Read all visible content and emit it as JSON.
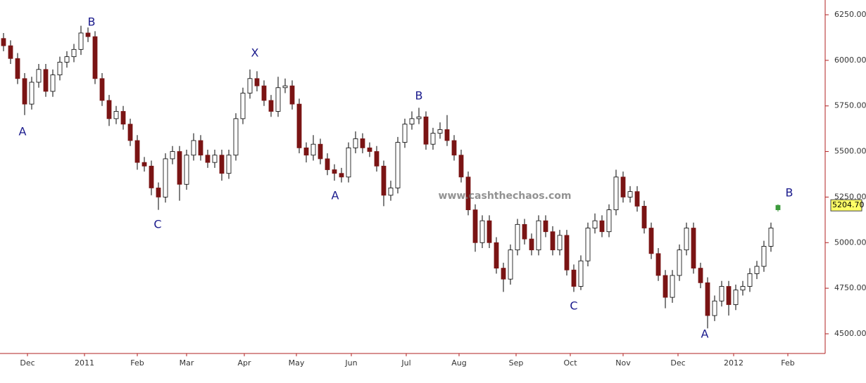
{
  "chart_data": {
    "type": "candlestick",
    "open": [
      6120,
      6080,
      6010,
      5900,
      5760,
      5880,
      5950,
      5830,
      5920,
      5990,
      6020,
      6060,
      6150,
      6130,
      5900,
      5780,
      5680,
      5720,
      5650,
      5560,
      5440,
      5420,
      5300,
      5250,
      5460,
      5500,
      5320,
      5480,
      5560,
      5480,
      5440,
      5480,
      5380,
      5480,
      5680,
      5820,
      5900,
      5860,
      5780,
      5720,
      5850,
      5860,
      5760,
      5520,
      5480,
      5540,
      5460,
      5400,
      5380,
      5360,
      5520,
      5570,
      5520,
      5500,
      5420,
      5260,
      5300,
      5550,
      5650,
      5680,
      5690,
      5540,
      5600,
      5620,
      5560,
      5480,
      5360,
      5180,
      5000,
      5120,
      5000,
      4860,
      4800,
      4960,
      5100,
      5020,
      4960,
      5120,
      5060,
      4960,
      5040,
      4850,
      4760,
      4900,
      5080,
      5120,
      5060,
      5180,
      5360,
      5250,
      5280,
      5200,
      5080,
      4940,
      4820,
      4700,
      4820,
      4960,
      5080,
      4860,
      4780,
      4600,
      4680,
      4760,
      4660,
      4740,
      4760,
      4830,
      4870,
      4980,
      5180
    ],
    "high": [
      6150,
      6110,
      6040,
      5930,
      5910,
      5980,
      5980,
      5950,
      6020,
      6050,
      6090,
      6190,
      6180,
      6160,
      5930,
      5810,
      5750,
      5750,
      5680,
      5590,
      5470,
      5450,
      5330,
      5490,
      5530,
      5530,
      5510,
      5600,
      5590,
      5510,
      5510,
      5510,
      5510,
      5710,
      5850,
      5950,
      5940,
      5890,
      5810,
      5910,
      5900,
      5890,
      5790,
      5550,
      5590,
      5570,
      5490,
      5430,
      5410,
      5550,
      5610,
      5600,
      5550,
      5530,
      5450,
      5340,
      5580,
      5680,
      5720,
      5740,
      5720,
      5630,
      5660,
      5700,
      5590,
      5510,
      5390,
      5210,
      5150,
      5150,
      5030,
      4890,
      4990,
      5130,
      5130,
      5050,
      5150,
      5150,
      5090,
      5070,
      5070,
      4880,
      4930,
      5110,
      5160,
      5150,
      5210,
      5400,
      5390,
      5310,
      5310,
      5230,
      5110,
      4970,
      4850,
      4850,
      4990,
      5110,
      5110,
      4890,
      4810,
      4710,
      4790,
      4790,
      4770,
      4790,
      4860,
      4900,
      5010,
      5110,
      5210
    ],
    "low": [
      6050,
      5980,
      5870,
      5700,
      5730,
      5850,
      5800,
      5800,
      5890,
      5960,
      5990,
      6030,
      6100,
      5870,
      5750,
      5640,
      5650,
      5620,
      5530,
      5400,
      5390,
      5260,
      5180,
      5220,
      5430,
      5230,
      5290,
      5450,
      5450,
      5410,
      5410,
      5340,
      5350,
      5450,
      5650,
      5790,
      5830,
      5750,
      5690,
      5690,
      5820,
      5730,
      5490,
      5440,
      5450,
      5430,
      5370,
      5340,
      5330,
      5330,
      5490,
      5490,
      5470,
      5390,
      5200,
      5230,
      5270,
      5520,
      5620,
      5650,
      5510,
      5510,
      5570,
      5530,
      5450,
      5330,
      5150,
      4950,
      4970,
      4970,
      4830,
      4730,
      4770,
      4930,
      4990,
      4930,
      4930,
      5030,
      4930,
      4930,
      4820,
      4730,
      4740,
      4870,
      5050,
      5030,
      5030,
      5150,
      5220,
      5220,
      5170,
      5050,
      4910,
      4790,
      4640,
      4670,
      4790,
      4930,
      4830,
      4750,
      4530,
      4570,
      4650,
      4600,
      4630,
      4710,
      4730,
      4800,
      4840,
      4950,
      5170
    ],
    "close": [
      6080,
      6010,
      5900,
      5760,
      5880,
      5950,
      5830,
      5920,
      5990,
      6020,
      6060,
      6150,
      6130,
      5900,
      5780,
      5680,
      5720,
      5650,
      5560,
      5440,
      5420,
      5300,
      5250,
      5460,
      5500,
      5320,
      5480,
      5560,
      5480,
      5440,
      5480,
      5380,
      5480,
      5680,
      5820,
      5900,
      5860,
      5780,
      5720,
      5850,
      5860,
      5760,
      5520,
      5480,
      5540,
      5460,
      5400,
      5380,
      5360,
      5520,
      5570,
      5520,
      5500,
      5420,
      5260,
      5300,
      5550,
      5650,
      5680,
      5690,
      5540,
      5600,
      5620,
      5560,
      5480,
      5360,
      5180,
      5000,
      5120,
      5000,
      4860,
      4800,
      4960,
      5100,
      5020,
      4960,
      5120,
      5060,
      4960,
      5040,
      4850,
      4760,
      4900,
      5080,
      5120,
      5060,
      5180,
      5360,
      5250,
      5280,
      5200,
      5080,
      4940,
      4820,
      4700,
      4820,
      4960,
      5080,
      4860,
      4780,
      4600,
      4680,
      4760,
      4660,
      4740,
      4760,
      4830,
      4870,
      4980,
      5080,
      5204.7
    ],
    "last_price_label": "5204.70",
    "up_color": "#ffffff",
    "down_color": "#7a1414",
    "last_color": "#3c9a3c",
    "label_color": "#1a1a8c",
    "xlim": [
      0,
      117.2
    ],
    "xticks": [
      {
        "value": 3.9,
        "label": "Dec"
      },
      {
        "value": 12.0,
        "label": "2011"
      },
      {
        "value": 19.5,
        "label": "Feb"
      },
      {
        "value": 26.5,
        "label": "Mar"
      },
      {
        "value": 34.7,
        "label": "Apr"
      },
      {
        "value": 42.1,
        "label": "May"
      },
      {
        "value": 49.9,
        "label": "Jun"
      },
      {
        "value": 57.7,
        "label": "Jul"
      },
      {
        "value": 65.2,
        "label": "Aug"
      },
      {
        "value": 73.3,
        "label": "Sep"
      },
      {
        "value": 81.0,
        "label": "Oct"
      },
      {
        "value": 88.5,
        "label": "Nov"
      },
      {
        "value": 96.3,
        "label": "Dec"
      },
      {
        "value": 104.2,
        "label": "2012"
      },
      {
        "value": 111.9,
        "label": "Feb"
      }
    ],
    "ylim": [
      4392,
      6331
    ],
    "yticks": [
      {
        "value": 4500,
        "label": "4500.00"
      },
      {
        "value": 4750,
        "label": "4750.00"
      },
      {
        "value": 5000,
        "label": "5000.00"
      },
      {
        "value": 5250,
        "label": "5250.00"
      },
      {
        "value": 5500,
        "label": "5500.00"
      },
      {
        "value": 5750,
        "label": "5750.00"
      },
      {
        "value": 6000,
        "label": "6000.00"
      },
      {
        "value": 6250,
        "label": "6250.00"
      }
    ],
    "annotations": [
      {
        "text": "A",
        "x": 3.2,
        "y": 5606
      },
      {
        "text": "B",
        "x": 13.0,
        "y": 6208
      },
      {
        "text": "C",
        "x": 22.4,
        "y": 5097
      },
      {
        "text": "X",
        "x": 36.2,
        "y": 6038
      },
      {
        "text": "A",
        "x": 47.6,
        "y": 5255
      },
      {
        "text": "B",
        "x": 59.5,
        "y": 5803
      },
      {
        "text": "C",
        "x": 81.5,
        "y": 4650
      },
      {
        "text": "A",
        "x": 100.1,
        "y": 4496
      },
      {
        "text": "B",
        "x": 112.1,
        "y": 5271
      }
    ],
    "watermark": {
      "text": "www.cashthechaos.com",
      "x": 71.7,
      "y": 5255
    }
  }
}
